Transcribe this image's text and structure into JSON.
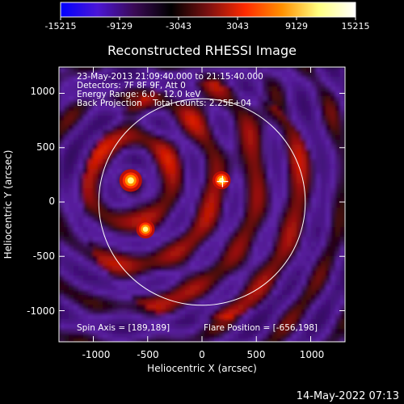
{
  "colorbar": {
    "ticks": [
      "-15215",
      "-9129",
      "-3043",
      "3043",
      "9129",
      "15215"
    ],
    "stops": [
      "#0000ff",
      "#4b16d6",
      "#3a0a55",
      "#000000",
      "#7a1010",
      "#ff2a00",
      "#ff9000",
      "#ffff80",
      "#ffffff"
    ]
  },
  "title": "Reconstructed RHESSI Image",
  "info": [
    "23-May-2013 21:09:40.000 to 21:15:40.000",
    "Detectors: 7F 8F 9F, Att 0",
    "Energy Range: 6.0 - 12.0 keV",
    "Back Projection    Total counts: 2.25E+04"
  ],
  "spin_axis": "Spin Axis = [189,189]",
  "flare_position": "Flare Position = [-656,198]",
  "axes": {
    "x_label": "Heliocentric X (arcsec)",
    "y_label": "Heliocentric Y (arcsec)",
    "x_ticks": [
      "-1000",
      "-500",
      "0",
      "500",
      "1000"
    ],
    "y_ticks": [
      "1000",
      "500",
      "0",
      "-500",
      "-1000"
    ],
    "x_tick_values": [
      -1000,
      -500,
      0,
      500,
      1000
    ],
    "y_tick_values": [
      1000,
      500,
      0,
      -500,
      -1000
    ],
    "xlim": [
      -1300,
      1300
    ],
    "ylim": [
      -1300,
      1300
    ]
  },
  "map": {
    "solar_radius_arcsec": 950,
    "sources": [
      {
        "x": -656,
        "y": 198,
        "level": 1.0
      },
      {
        "x": -520,
        "y": -250,
        "level": 0.55
      },
      {
        "x": 180,
        "y": 200,
        "level": 0.5
      }
    ],
    "crosshair": {
      "x": 189,
      "y": 189
    }
  },
  "timestamp": "14-May-2022 07:13"
}
